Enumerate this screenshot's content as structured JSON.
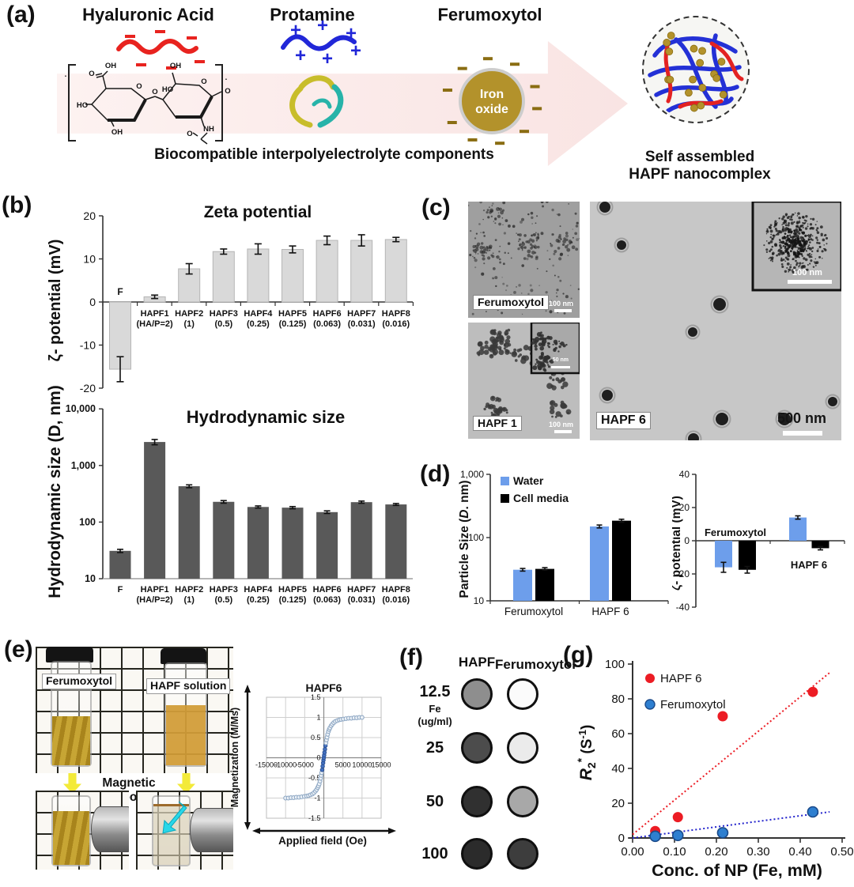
{
  "figure": {
    "panel_labels": [
      "(a)",
      "(b)",
      "(c)",
      "(d)",
      "(e)",
      "(f)",
      "(g)"
    ]
  },
  "panel_a": {
    "component_titles": [
      "Hyaluronic Acid",
      "Protamine",
      "Ferumoxytol"
    ],
    "iron_oxide_line1": "Iron",
    "iron_oxide_line2": "oxide",
    "caption": "Biocompatible interpolyelectrolyte components",
    "product_line1": "Self assembled",
    "product_line2": "HAPF nanocomplex",
    "structure_labels": [
      "OH",
      "O",
      "HO",
      "OH",
      "O",
      "O",
      "HO",
      "OH",
      "O",
      "NH",
      "O"
    ],
    "colors": {
      "polyanion_red": "#e8231f",
      "polycation_blue": "#2127d8",
      "iron_gold": "#b3922b",
      "arrow_pink": "#f9e4e3"
    }
  },
  "panel_c": {
    "tem_images": [
      {
        "label": "Ferumoxytol",
        "scale_bar": "100 nm"
      },
      {
        "label": "HAPF 1",
        "scale_bar": "100 nm",
        "inset_scale_bar": "50 nm"
      },
      {
        "label": "HAPF 6",
        "scale_bar": "500 nm",
        "inset_scale_bar": "100 nm"
      }
    ]
  },
  "panel_e": {
    "vial_labels": [
      "Ferumoxytol",
      "HAPF solution"
    ],
    "arrow_caption": "Magnetic Response"
  },
  "panel_f": {
    "col_headers": [
      "HAPF",
      "Ferumoxytol"
    ],
    "row_labels": [
      "12.5",
      "25",
      "50",
      "100"
    ],
    "unit_line1": "Fe",
    "unit_line2": "(ug/ml)",
    "well_shades_hapf": [
      "#8e8e8e",
      "#4c4c4c",
      "#303030",
      "#2b2b2b"
    ],
    "well_shades_ferumoxytol": [
      "#fbfbfb",
      "#ebebeb",
      "#a8a8a8",
      "#3d3d3d"
    ]
  },
  "chart_data": [
    {
      "id": "zeta_potential",
      "type": "bar",
      "title": "Zeta potential",
      "ylabel": "ζ- potential (mV)",
      "ylim": [
        -20,
        20
      ],
      "yticks": [
        20,
        10,
        0,
        -10,
        -20
      ],
      "categories": [
        "F",
        "HAPF1|(HA/P=2)",
        "HAPF2|(1)",
        "HAPF3|(0.5)",
        "HAPF4|(0.25)",
        "HAPF5|(0.125)",
        "HAPF6|(0.063)",
        "HAPF7|(0.031)",
        "HAPF8|(0.016)"
      ],
      "values": [
        -15.6,
        1.2,
        7.7,
        11.7,
        12.3,
        12.2,
        14.3,
        14.3,
        14.5
      ],
      "errors": [
        2.9,
        0.4,
        1.2,
        0.6,
        1.2,
        0.8,
        1.0,
        1.3,
        0.5
      ],
      "bar_color": "#d9d9d9"
    },
    {
      "id": "hydrodynamic_size",
      "type": "bar",
      "yscale": "log",
      "title": "Hydrodynamic size",
      "ylabel": "Hydrodynamic size (D, nm)",
      "ylim": [
        10,
        10000
      ],
      "yticks": [
        10,
        100,
        1000,
        10000
      ],
      "ytick_labels": [
        "10",
        "100",
        "1,000",
        "10,000"
      ],
      "categories": [
        "F",
        "HAPF1|(HA/P=2)",
        "HAPF2|(1)",
        "HAPF3|(0.5)",
        "HAPF4|(0.25)",
        "HAPF5|(0.125)",
        "HAPF6|(0.063)",
        "HAPF7|(0.031)",
        "HAPF8|(0.016)"
      ],
      "values": [
        31,
        2600,
        430,
        228,
        185,
        180,
        150,
        225,
        205
      ],
      "errors": [
        2,
        280,
        25,
        12,
        8,
        8,
        8,
        10,
        8
      ],
      "bar_color": "#595959"
    },
    {
      "id": "particle_size",
      "type": "grouped_bar",
      "yscale": "log",
      "ylabel_parts": [
        "Particle Size (",
        "D",
        ". nm)"
      ],
      "ylim": [
        10,
        1000
      ],
      "ytick_labels": [
        "10",
        "100",
        "1,000"
      ],
      "categories": [
        "Ferumoxytol",
        "HAPF 6"
      ],
      "series": [
        {
          "name": "Water",
          "color": "#6d9eeb",
          "values": [
            31,
            150
          ],
          "errors": [
            1.5,
            8
          ]
        },
        {
          "name": "Cell media",
          "color": "#000000",
          "values": [
            32,
            185
          ],
          "errors": [
            1.5,
            10
          ]
        }
      ]
    },
    {
      "id": "zeta_media",
      "type": "grouped_bar",
      "ylabel": "ζ- potential (mV)",
      "ylim": [
        -40,
        40
      ],
      "yticks": [
        40,
        20,
        0,
        -20,
        -40
      ],
      "categories": [
        "Ferumoxytol",
        "HAPF 6"
      ],
      "series": [
        {
          "name": "Water",
          "color": "#6d9eeb",
          "values": [
            -16,
            14
          ],
          "errors": [
            3,
            1
          ]
        },
        {
          "name": "Cell media",
          "color": "#000000",
          "values": [
            -17.5,
            -4.5
          ],
          "errors": [
            2,
            1
          ]
        }
      ]
    },
    {
      "id": "magnetization",
      "type": "scatter",
      "title": "HAPF6",
      "xlabel": "Applied field (Oe)",
      "ylabel": "Magnetization (M/Ms)",
      "xlim": [
        -15000,
        15000
      ],
      "ylim": [
        -1.5,
        1.5
      ],
      "xticks": [
        -15000,
        -10000,
        -5000,
        0,
        5000,
        10000,
        15000
      ],
      "yticks": [
        1.5,
        1,
        0.5,
        0,
        -0.5,
        -1,
        -1.5
      ],
      "marker_color": "#8fa8c4",
      "points": [
        [
          -10000,
          -1.0
        ],
        [
          -9300,
          -1.0
        ],
        [
          -8600,
          -0.99
        ],
        [
          -7900,
          -0.99
        ],
        [
          -7200,
          -0.98
        ],
        [
          -6500,
          -0.98
        ],
        [
          -5800,
          -0.97
        ],
        [
          -5100,
          -0.96
        ],
        [
          -4500,
          -0.95
        ],
        [
          -4000,
          -0.94
        ],
        [
          -3500,
          -0.92
        ],
        [
          -3000,
          -0.9
        ],
        [
          -2600,
          -0.87
        ],
        [
          -2200,
          -0.83
        ],
        [
          -1900,
          -0.79
        ],
        [
          -1600,
          -0.74
        ],
        [
          -1400,
          -0.7
        ],
        [
          -1200,
          -0.65
        ],
        [
          -1000,
          -0.58
        ],
        [
          -850,
          -0.51
        ],
        [
          -700,
          -0.44
        ],
        [
          -560,
          -0.37
        ],
        [
          -430,
          -0.3
        ],
        [
          -300,
          -0.21
        ],
        [
          -180,
          -0.13
        ],
        [
          -90,
          -0.06
        ],
        [
          0,
          0
        ],
        [
          90,
          0.06
        ],
        [
          180,
          0.13
        ],
        [
          300,
          0.21
        ],
        [
          430,
          0.3
        ],
        [
          560,
          0.37
        ],
        [
          700,
          0.44
        ],
        [
          850,
          0.51
        ],
        [
          1000,
          0.58
        ],
        [
          1200,
          0.65
        ],
        [
          1400,
          0.7
        ],
        [
          1600,
          0.74
        ],
        [
          1900,
          0.79
        ],
        [
          2200,
          0.83
        ],
        [
          2600,
          0.87
        ],
        [
          3000,
          0.9
        ],
        [
          3500,
          0.92
        ],
        [
          4000,
          0.94
        ],
        [
          4500,
          0.95
        ],
        [
          5100,
          0.96
        ],
        [
          5800,
          0.97
        ],
        [
          6500,
          0.98
        ],
        [
          7200,
          0.98
        ],
        [
          7900,
          0.99
        ],
        [
          8600,
          0.99
        ],
        [
          9300,
          1.0
        ],
        [
          10000,
          1.0
        ]
      ]
    },
    {
      "id": "r2star",
      "type": "scatter",
      "xlabel": "Conc. of NP (Fe, mM)",
      "ylabel_parts": [
        "R",
        "2",
        "*",
        " (S",
        "-1",
        ")"
      ],
      "xlim": [
        0,
        0.5
      ],
      "ylim": [
        0,
        100
      ],
      "xtick_labels": [
        "0.00",
        "0.10",
        "0.20",
        "0.30",
        "0.40",
        "0.50"
      ],
      "yticks": [
        0,
        20,
        40,
        60,
        80,
        100
      ],
      "series": [
        {
          "name": "HAPF 6",
          "color": "#ec1c24",
          "points": [
            [
              0.054,
              4
            ],
            [
              0.108,
              12
            ],
            [
              0.215,
              70
            ],
            [
              0.43,
              84
            ]
          ],
          "trend": [
            [
              0,
              2
            ],
            [
              0.47,
              95
            ]
          ]
        },
        {
          "name": "Ferumoxytol",
          "color": "#2e7fd0",
          "stroke": "#1b4a8a",
          "points": [
            [
              0.054,
              1
            ],
            [
              0.108,
              1.5
            ],
            [
              0.215,
              3
            ],
            [
              0.43,
              15
            ]
          ],
          "trend": [
            [
              0,
              0
            ],
            [
              0.47,
              15
            ]
          ]
        }
      ]
    }
  ]
}
